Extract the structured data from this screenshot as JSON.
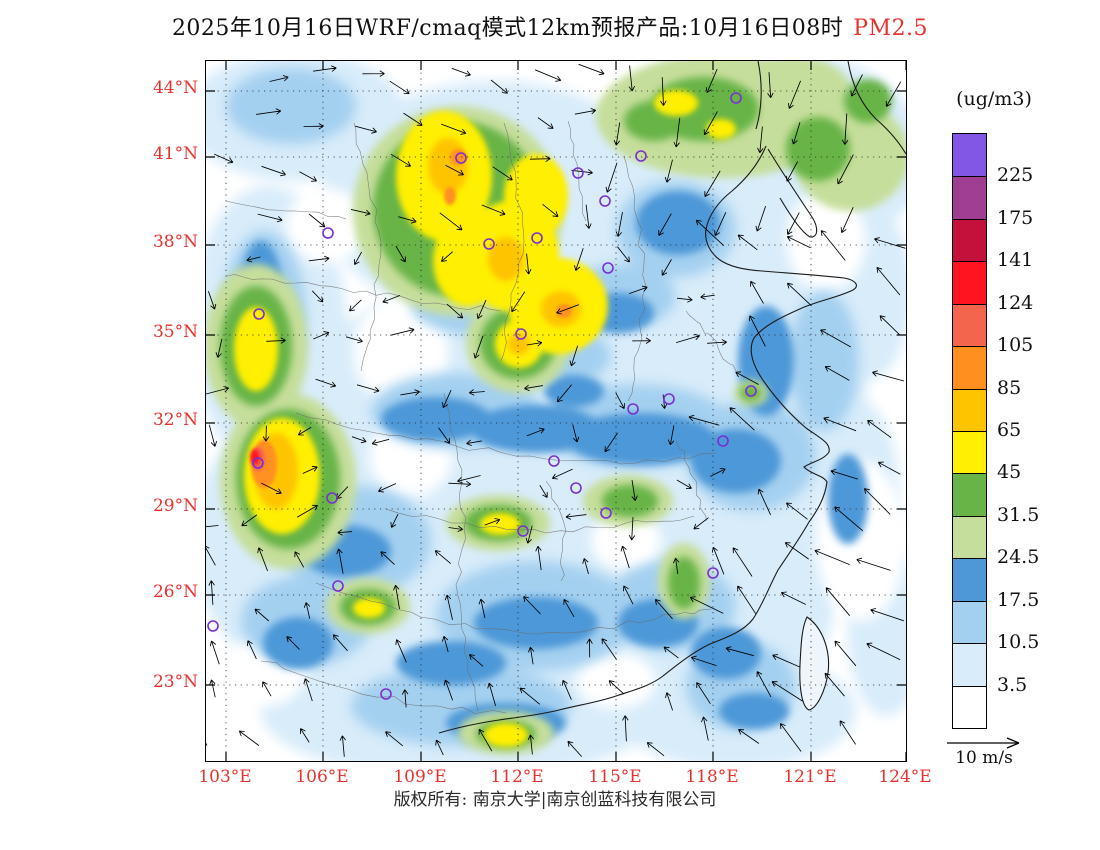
{
  "title": {
    "main": "2025年10月16日WRF/cmaq模式12km预报产品:10月16日08时",
    "pollutant": "PM2.5"
  },
  "axes": {
    "lat_labels": [
      "44°N",
      "41°N",
      "38°N",
      "35°N",
      "32°N",
      "29°N",
      "26°N",
      "23°N"
    ],
    "lon_labels": [
      "103°E",
      "106°E",
      "109°E",
      "112°E",
      "115°E",
      "118°E",
      "121°E",
      "124°E"
    ]
  },
  "legend": {
    "units_label": "(ug/m3)",
    "boundary_labels": [
      "225",
      "175",
      "141",
      "124",
      "105",
      "85",
      "65",
      "45",
      "31.5",
      "24.5",
      "17.5",
      "10.5",
      "3.5"
    ],
    "segment_colors": [
      "#8257E5",
      "#A03E93",
      "#C2123C",
      "#FF1420",
      "#F4654E",
      "#FF9020",
      "#FFC400",
      "#FFEF00",
      "#68B447",
      "#C6DE9B",
      "#4E98D8",
      "#A4D0F0",
      "#D8ECFA",
      "#FFFFFF"
    ]
  },
  "wind_scale": {
    "label": "10 m/s"
  },
  "footer": {
    "copyright": "版权所有: 南京大学|南京创蓝科技有限公司"
  },
  "colors": {
    "axis_label_red": "#E8322E",
    "marker_purple": "#7B2FD0"
  },
  "chart_data": {
    "type": "heatmap",
    "title": "2025年10月16日WRF/cmaq模式12km预报产品:10月16日08时 PM2.5",
    "variable": "PM2.5",
    "units": "ug/m3",
    "x_ticks": [
      "103°E",
      "106°E",
      "109°E",
      "112°E",
      "115°E",
      "118°E",
      "121°E",
      "124°E"
    ],
    "y_ticks": [
      "44°N",
      "41°N",
      "38°N",
      "35°N",
      "32°N",
      "29°N",
      "26°N",
      "23°N"
    ],
    "colorbar_levels": [
      3.5,
      10.5,
      17.5,
      24.5,
      31.5,
      45,
      65,
      85,
      105,
      124,
      141,
      175,
      225
    ],
    "colorbar_colors_low_to_high": [
      "#FFFFFF",
      "#D8ECFA",
      "#A4D0F0",
      "#4E98D8",
      "#C6DE9B",
      "#68B447",
      "#FFEF00",
      "#FFC400",
      "#FF9020",
      "#F4654E",
      "#FF1420",
      "#C2123C",
      "#A03E93",
      "#8257E5"
    ],
    "overlays": [
      "wind vectors (arrows)",
      "province boundaries",
      "coastline",
      "purple city circles",
      "dotted lat-lon grid"
    ],
    "wind_reference": "10 m/s",
    "field_summary": "PM2.5 45-85 ug/m3 (yellow/gold) over Shanxi-Hebei-Shandong and a Sichuan Basin hotspot reaching ~124-141 (red); greens 24.5-45 over Northeast and scattered south; widespread blues 3.5-24.5 elsewhere; near-white clean air over eastern seas."
  }
}
